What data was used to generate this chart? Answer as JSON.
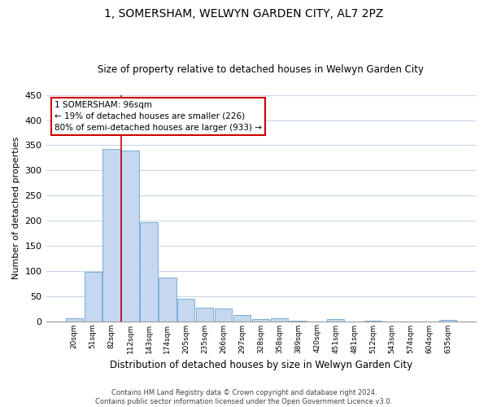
{
  "title": "1, SOMERSHAM, WELWYN GARDEN CITY, AL7 2PZ",
  "subtitle": "Size of property relative to detached houses in Welwyn Garden City",
  "xlabel": "Distribution of detached houses by size in Welwyn Garden City",
  "ylabel": "Number of detached properties",
  "bar_labels": [
    "20sqm",
    "51sqm",
    "82sqm",
    "112sqm",
    "143sqm",
    "174sqm",
    "205sqm",
    "235sqm",
    "266sqm",
    "297sqm",
    "328sqm",
    "358sqm",
    "389sqm",
    "420sqm",
    "451sqm",
    "481sqm",
    "512sqm",
    "543sqm",
    "574sqm",
    "604sqm",
    "635sqm"
  ],
  "bar_values": [
    5,
    98,
    342,
    340,
    197,
    87,
    44,
    27,
    25,
    12,
    4,
    5,
    1,
    0,
    4,
    0,
    1,
    0,
    0,
    0,
    2
  ],
  "bar_color": "#c5d8ef",
  "bar_edge_color": "#7aadd4",
  "vline_x_index": 2.5,
  "ylim": [
    0,
    450
  ],
  "yticks": [
    0,
    50,
    100,
    150,
    200,
    250,
    300,
    350,
    400,
    450
  ],
  "annotation_title": "1 SOMERSHAM: 96sqm",
  "annotation_line1": "← 19% of detached houses are smaller (226)",
  "annotation_line2": "80% of semi-detached houses are larger (933) →",
  "annotation_box_color": "#ffffff",
  "annotation_box_edge_color": "#cc0000",
  "vline_color": "#cc0000",
  "footer_line1": "Contains HM Land Registry data © Crown copyright and database right 2024.",
  "footer_line2": "Contains public sector information licensed under the Open Government Licence v3.0.",
  "background_color": "#ffffff",
  "grid_color": "#c8d8ec"
}
